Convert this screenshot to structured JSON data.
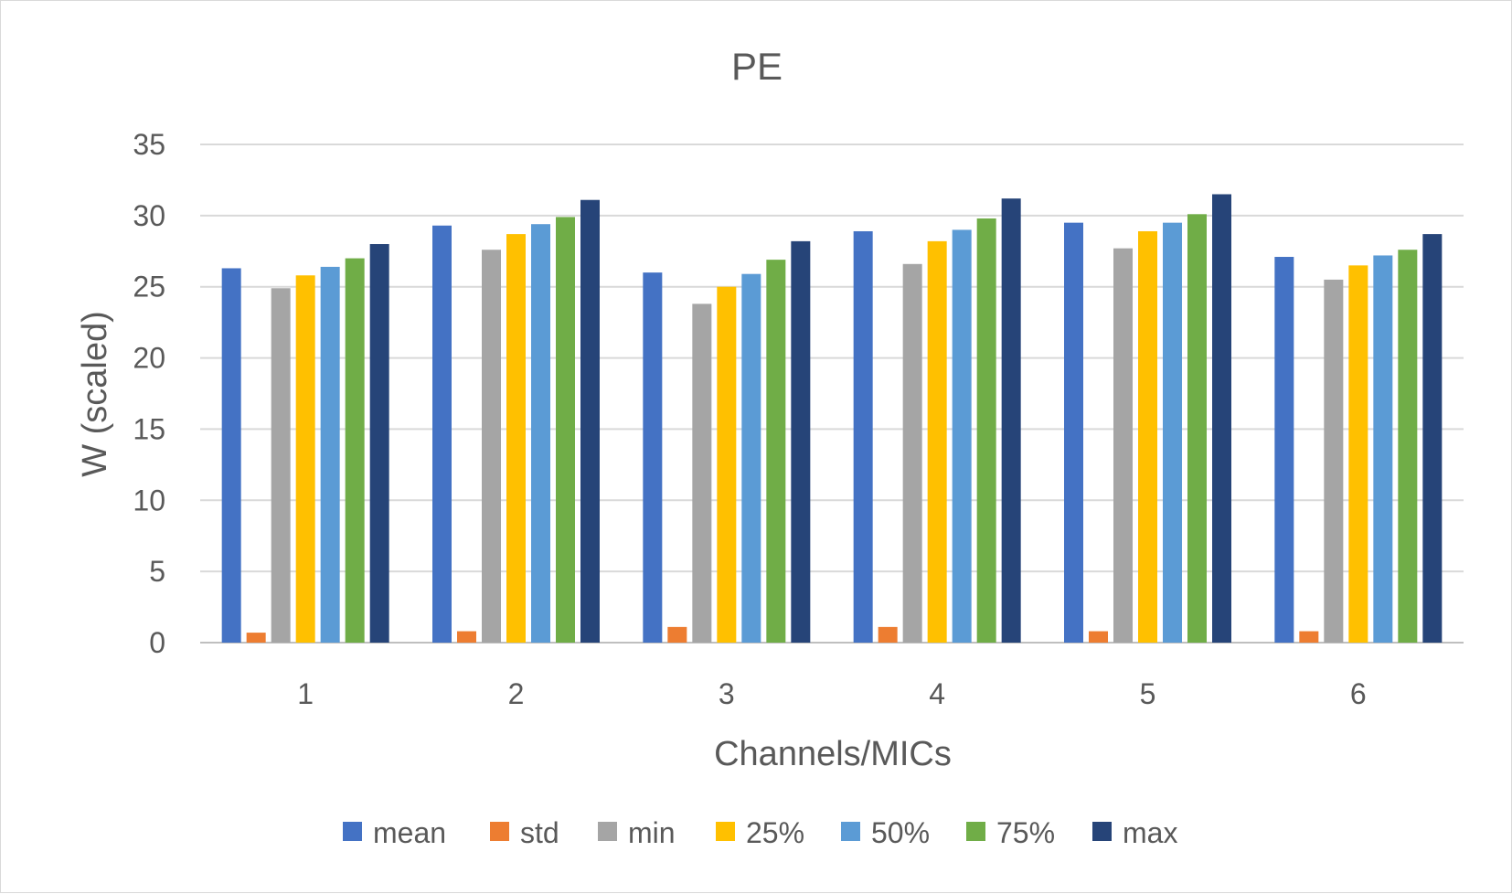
{
  "chart_data": {
    "type": "bar",
    "title": "PE",
    "xlabel": "Channels/MICs",
    "ylabel": "W (scaled)",
    "ylim": [
      0,
      35
    ],
    "yticks": [
      "0",
      "5",
      "10",
      "15",
      "20",
      "25",
      "30",
      "35"
    ],
    "grid": true,
    "legend_position": "bottom",
    "categories": [
      "1",
      "2",
      "3",
      "4",
      "5",
      "6"
    ],
    "series": [
      {
        "name": "mean",
        "color": "#4472c4",
        "values": [
          26.3,
          29.3,
          26.0,
          28.9,
          29.5,
          27.1
        ]
      },
      {
        "name": "std",
        "color": "#ed7d31",
        "values": [
          0.7,
          0.8,
          1.1,
          1.1,
          0.8,
          0.8
        ]
      },
      {
        "name": "min",
        "color": "#a5a5a5",
        "values": [
          24.9,
          27.6,
          23.8,
          26.6,
          27.7,
          25.5
        ]
      },
      {
        "name": "25%",
        "color": "#ffc000",
        "values": [
          25.8,
          28.7,
          25.0,
          28.2,
          28.9,
          26.5
        ]
      },
      {
        "name": "50%",
        "color": "#5b9bd5",
        "values": [
          26.4,
          29.4,
          25.9,
          29.0,
          29.5,
          27.2
        ]
      },
      {
        "name": "75%",
        "color": "#70ad47",
        "values": [
          27.0,
          29.9,
          26.9,
          29.8,
          30.1,
          27.6
        ]
      },
      {
        "name": "max",
        "color": "#264478",
        "values": [
          28.0,
          31.1,
          28.2,
          31.2,
          31.5,
          28.7
        ]
      }
    ]
  }
}
